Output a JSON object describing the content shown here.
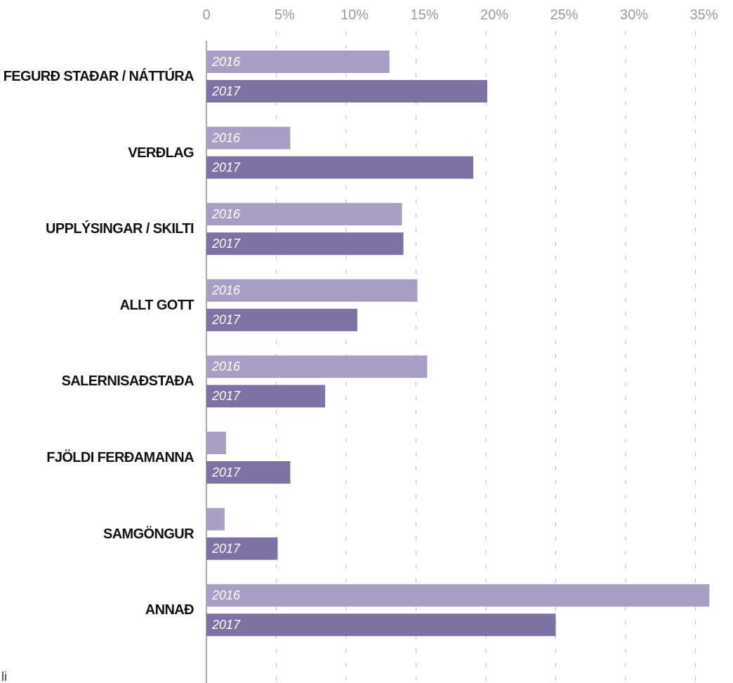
{
  "chart_data": {
    "type": "bar",
    "orientation": "horizontal",
    "categories": [
      "FEGURÐ STAÐAR / NÁTTÚRA",
      "VERÐLAG",
      "UPPLÝSINGAR / SKILTI",
      "ALLT GOTT",
      "SALERNISAÐSTAÐA",
      "FJÖLDI FERÐAMANNA",
      "SAMGÖNGUR",
      "ANNAÐ"
    ],
    "series": [
      {
        "name": "2016",
        "color": "#a99fc4",
        "values": [
          13.1,
          6.0,
          14.0,
          15.1,
          15.8,
          1.4,
          1.3,
          36.0
        ]
      },
      {
        "name": "2017",
        "color": "#7d72a3",
        "values": [
          20.1,
          19.1,
          14.1,
          10.8,
          8.5,
          6.0,
          5.1,
          25.0
        ]
      }
    ],
    "xlim": [
      0,
      36.5
    ],
    "xticks": [
      0,
      {
        "value": 5,
        "label": "5%"
      },
      {
        "value": 10,
        "label": "10%"
      },
      {
        "value": 15,
        "label": "15%"
      },
      {
        "value": 20,
        "label": "20%"
      },
      {
        "value": 25,
        "label": "25%"
      },
      {
        "value": 30,
        "label": "30%"
      },
      {
        "value": 35,
        "label": "35%"
      }
    ],
    "grid": true,
    "footnote": "li"
  }
}
